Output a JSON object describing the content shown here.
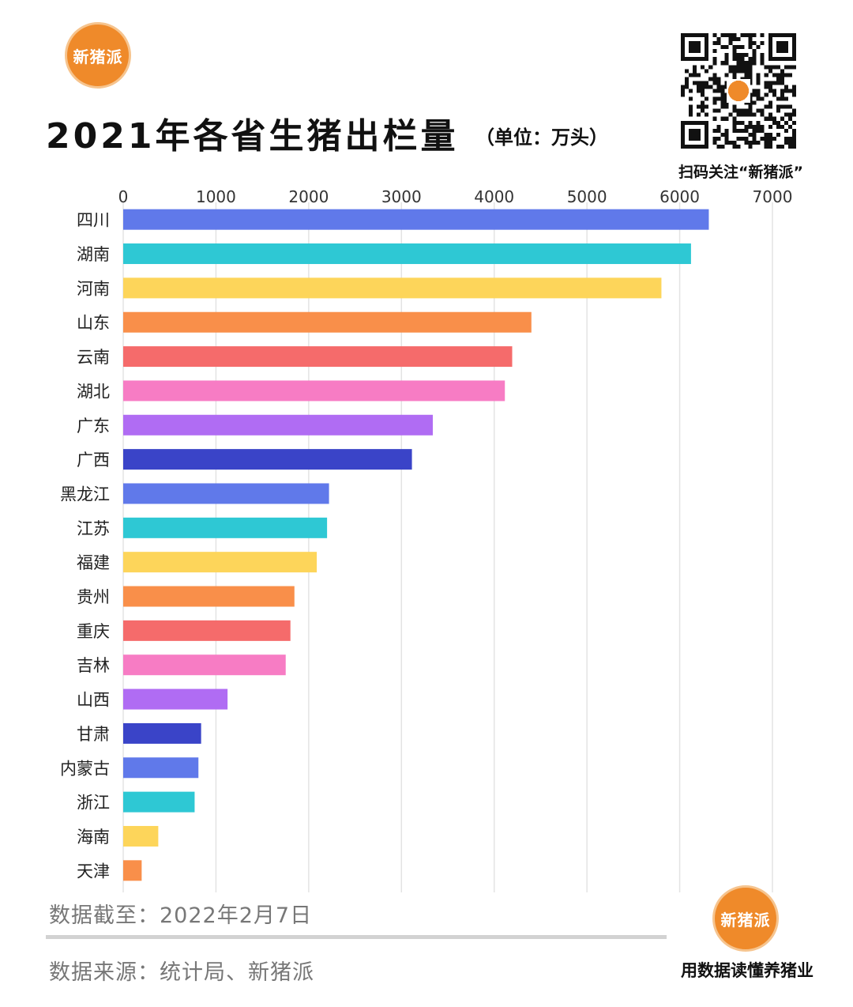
{
  "brand": {
    "logo_text": "新猪派",
    "qr_caption": "扫码关注“新猪派”",
    "slogan": "用数据读懂养猪业"
  },
  "header": {
    "title": "2021年各省生猪出栏量",
    "unit": "（单位：万头）"
  },
  "footer": {
    "date_note": "数据截至：2022年2月7日",
    "source_note": "数据来源：统计局、新猪派"
  },
  "colors": {
    "palette": [
      "#6079ea",
      "#2ec8d4",
      "#fdd55a",
      "#f98f4a",
      "#f56b6b",
      "#f77cc4",
      "#b06cf3",
      "#3a44c8"
    ],
    "grid": "#e3e3e3",
    "accent": "#ef8a2a"
  },
  "chart_data": {
    "type": "bar",
    "orientation": "horizontal",
    "title": "2021年各省生猪出栏量",
    "unit": "（单位：万头）",
    "xlim": [
      0,
      7000
    ],
    "xticks": [
      0,
      1000,
      2000,
      3000,
      4000,
      5000,
      6000,
      7000
    ],
    "grid": true,
    "categories": [
      "四川",
      "湖南",
      "河南",
      "山东",
      "云南",
      "湖北",
      "广东",
      "广西",
      "黑龙江",
      "江苏",
      "福建",
      "贵州",
      "重庆",
      "吉林",
      "山西",
      "甘肃",
      "内蒙古",
      "浙江",
      "海南",
      "天津"
    ],
    "values": [
      6314,
      6122,
      5803,
      4401,
      4194,
      4115,
      3338,
      3113,
      2219,
      2198,
      2087,
      1846,
      1803,
      1752,
      1125,
      840,
      811,
      770,
      378,
      199
    ]
  }
}
